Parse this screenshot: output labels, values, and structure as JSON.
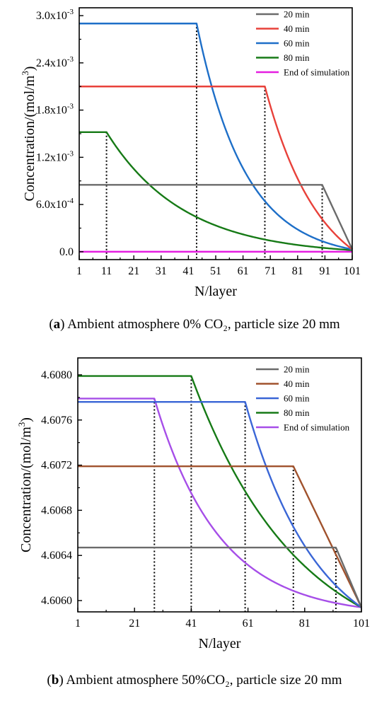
{
  "chart_data": [
    {
      "type": "line",
      "panel_label": "a",
      "caption": "Ambient atmosphere 0% CO₂, particle size 20 mm",
      "xlabel": "N/layer",
      "ylabel_base": "Concentration/(mol/m",
      "ylabel_sup": "3",
      "ylabel_close": ")",
      "xlim": [
        1,
        101
      ],
      "ylim": [
        -0.0001,
        0.0031
      ],
      "xticks": [
        1,
        11,
        21,
        31,
        41,
        51,
        61,
        71,
        81,
        91,
        101
      ],
      "yticks": [
        {
          "value": 0,
          "mant": "0.0",
          "exp": ""
        },
        {
          "value": 0.0006,
          "mant": "6.0x10",
          "exp": "-4"
        },
        {
          "value": 0.0012,
          "mant": "1.2x10",
          "exp": "-3"
        },
        {
          "value": 0.0018,
          "mant": "1.8x10",
          "exp": "-3"
        },
        {
          "value": 0.0024,
          "mant": "2.4x10",
          "exp": "-3"
        },
        {
          "value": 0.003,
          "mant": "3.0x10",
          "exp": "-3"
        }
      ],
      "legend_position": "top-right",
      "series": [
        {
          "name": "20 min",
          "color": "#6b6b6b",
          "plateau": 0.00085,
          "front": 90,
          "shape": "linear",
          "end": 3e-05,
          "start": 1
        },
        {
          "name": "40 min",
          "color": "#e8413a",
          "plateau": 0.0021,
          "front": 69,
          "shape": "convex",
          "end": 3e-05,
          "start": 1
        },
        {
          "name": "60 min",
          "color": "#1e6fc8",
          "plateau": 0.0029,
          "front": 44,
          "shape": "decay",
          "end": 3e-05,
          "start": 1
        },
        {
          "name": "80 min",
          "color": "#167a16",
          "plateau": 0.00152,
          "front": 11,
          "shape": "decay",
          "end": 2e-05,
          "start": 1
        },
        {
          "name": "End of simulation",
          "color": "#e51ee0",
          "plateau": 0.0,
          "front": 101,
          "shape": "linear",
          "end": 0.0,
          "start": 1
        }
      ],
      "dotted_markers": [
        {
          "x": 11,
          "y": 0.00152
        },
        {
          "x": 44,
          "y": 0.0029
        },
        {
          "x": 69,
          "y": 0.0021
        },
        {
          "x": 90,
          "y": 0.00085
        }
      ]
    },
    {
      "type": "line",
      "panel_label": "b",
      "caption": "Ambient atmosphere 50%CO₂, particle size 20 mm",
      "xlabel": "N/layer",
      "ylabel_base": "Concentration/(mol/m",
      "ylabel_sup": "3",
      "ylabel_close": ")",
      "xlim": [
        1,
        101
      ],
      "ylim": [
        4.6059,
        4.60815
      ],
      "xticks": [
        1,
        21,
        41,
        61,
        81,
        101
      ],
      "yticks": [
        {
          "value": 4.606,
          "mant": "4.6060",
          "exp": ""
        },
        {
          "value": 4.6064,
          "mant": "4.6064",
          "exp": ""
        },
        {
          "value": 4.6068,
          "mant": "4.6068",
          "exp": ""
        },
        {
          "value": 4.6072,
          "mant": "4.6072",
          "exp": ""
        },
        {
          "value": 4.6076,
          "mant": "4.6076",
          "exp": ""
        },
        {
          "value": 4.608,
          "mant": "4.6080",
          "exp": ""
        }
      ],
      "legend_position": "top-right",
      "series": [
        {
          "name": "20 min",
          "color": "#6b6b6b",
          "plateau": 4.60647,
          "front": 92,
          "shape": "linear",
          "end": 4.60594,
          "start": 1
        },
        {
          "name": "40 min",
          "color": "#a0522d",
          "plateau": 4.60719,
          "front": 77,
          "shape": "linear",
          "end": 4.60594,
          "start": 1
        },
        {
          "name": "60 min",
          "color": "#3a66d6",
          "plateau": 4.60776,
          "front": 60,
          "shape": "convex",
          "end": 4.60594,
          "start": 1
        },
        {
          "name": "80 min",
          "color": "#167a16",
          "plateau": 4.60799,
          "front": 41,
          "shape": "convex",
          "end": 4.60594,
          "start": 1
        },
        {
          "name": "End of simulation",
          "color": "#a64ee8",
          "plateau": 4.60779,
          "front": 28,
          "shape": "decay",
          "end": 4.60594,
          "start": 1
        }
      ],
      "dotted_markers": [
        {
          "x": 28,
          "y": 4.60779
        },
        {
          "x": 41,
          "y": 4.60799
        },
        {
          "x": 60,
          "y": 4.60776
        },
        {
          "x": 77,
          "y": 4.60719
        },
        {
          "x": 92,
          "y": 4.60647
        }
      ]
    }
  ]
}
